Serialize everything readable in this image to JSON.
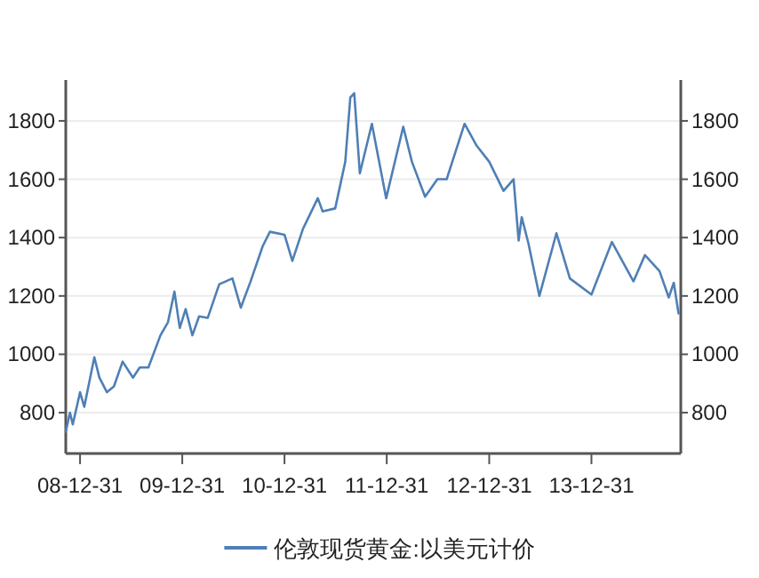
{
  "chart_data": {
    "type": "line",
    "grid": "y",
    "legend": "bottom",
    "marker": "none",
    "line_style": "solid",
    "xlim": [
      "2008-11-10",
      "2014-11-15"
    ],
    "xticks": [
      {
        "value": "2008-12-31",
        "label": "08-12-31"
      },
      {
        "value": "2009-12-31",
        "label": "09-12-31"
      },
      {
        "value": "2010-12-31",
        "label": "10-12-31"
      },
      {
        "value": "2011-12-31",
        "label": "11-12-31"
      },
      {
        "value": "2012-12-31",
        "label": "12-12-31"
      },
      {
        "value": "2013-12-31",
        "label": "13-12-31"
      }
    ],
    "ylim": [
      660,
      1940
    ],
    "yticks": [
      800,
      1000,
      1200,
      1400,
      1600,
      1800
    ],
    "y2lim": [
      660,
      1940
    ],
    "y2ticks": [
      800,
      1000,
      1200,
      1400,
      1600,
      1800
    ],
    "x": [
      "2008-11-10",
      "2008-11-25",
      "2008-12-05",
      "2008-12-31",
      "2009-01-15",
      "2009-02-20",
      "2009-03-10",
      "2009-04-06",
      "2009-05-01",
      "2009-06-01",
      "2009-07-08",
      "2009-08-01",
      "2009-09-01",
      "2009-10-14",
      "2009-11-10",
      "2009-12-03",
      "2009-12-22",
      "2010-01-12",
      "2010-02-05",
      "2010-03-01",
      "2010-04-01",
      "2010-05-12",
      "2010-06-28",
      "2010-07-28",
      "2010-09-01",
      "2010-10-14",
      "2010-11-09",
      "2010-12-31",
      "2011-01-28",
      "2011-03-07",
      "2011-04-29",
      "2011-05-16",
      "2011-06-30",
      "2011-08-05",
      "2011-08-23",
      "2011-09-06",
      "2011-09-26",
      "2011-11-08",
      "2011-12-29",
      "2012-02-28",
      "2012-03-30",
      "2012-05-16",
      "2012-06-29",
      "2012-08-01",
      "2012-10-04",
      "2012-11-16",
      "2012-12-31",
      "2013-02-20",
      "2013-03-28",
      "2013-04-15",
      "2013-04-26",
      "2013-05-20",
      "2013-06-28",
      "2013-08-28",
      "2013-10-15",
      "2013-12-31",
      "2014-03-14",
      "2014-05-30",
      "2014-07-10",
      "2014-08-31",
      "2014-10-03",
      "2014-10-21",
      "2014-11-07"
    ],
    "series": [
      {
        "name": "伦敦现货黄金:以美元计价",
        "color": "#4f7fb5",
        "values": [
          735,
          800,
          760,
          870,
          820,
          990,
          920,
          870,
          890,
          975,
          920,
          955,
          955,
          1065,
          1110,
          1215,
          1090,
          1155,
          1065,
          1130,
          1125,
          1240,
          1260,
          1160,
          1250,
          1370,
          1420,
          1410,
          1320,
          1430,
          1535,
          1490,
          1500,
          1660,
          1880,
          1895,
          1620,
          1790,
          1535,
          1780,
          1660,
          1540,
          1600,
          1600,
          1790,
          1715,
          1660,
          1560,
          1600,
          1390,
          1470,
          1380,
          1200,
          1415,
          1260,
          1205,
          1385,
          1250,
          1340,
          1285,
          1195,
          1245,
          1140
        ]
      }
    ]
  }
}
